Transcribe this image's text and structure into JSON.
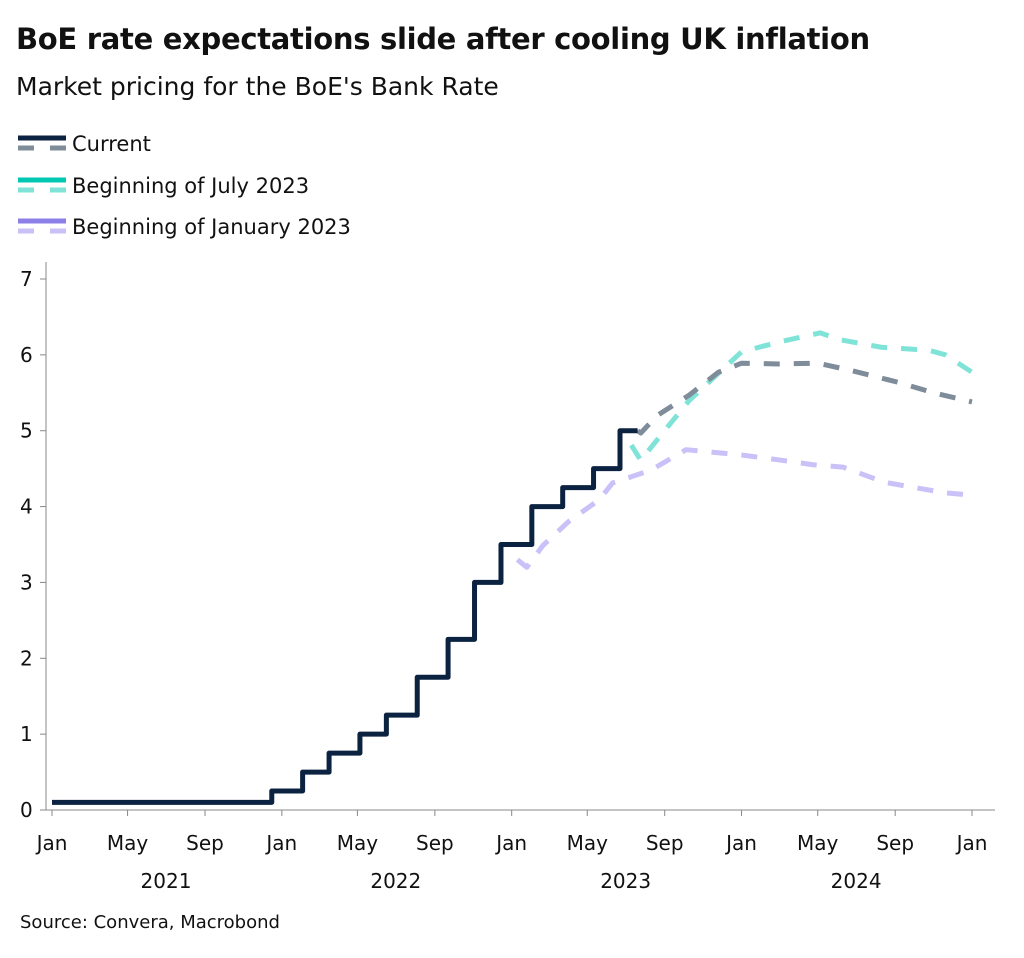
{
  "chart_data": {
    "type": "line",
    "title": "BoE rate expectations slide after cooling UK inflation",
    "subtitle": "Market pricing for the BoE's Bank Rate",
    "source": "Source: Convera, Macrobond",
    "ylim": [
      0,
      7
    ],
    "yticks": [
      "0",
      "1",
      "2",
      "3",
      "4",
      "5",
      "6",
      "7"
    ],
    "xlim": [
      "2021-01-01",
      "2025-01-01"
    ],
    "xticks": [
      {
        "date": "2021-01-01",
        "label": "Jan"
      },
      {
        "date": "2021-05-01",
        "label": "May"
      },
      {
        "date": "2021-09-01",
        "label": "Sep"
      },
      {
        "date": "2022-01-01",
        "label": "Jan"
      },
      {
        "date": "2022-05-01",
        "label": "May"
      },
      {
        "date": "2022-09-01",
        "label": "Sep"
      },
      {
        "date": "2023-01-01",
        "label": "Jan"
      },
      {
        "date": "2023-05-01",
        "label": "May"
      },
      {
        "date": "2023-09-01",
        "label": "Sep"
      },
      {
        "date": "2024-01-01",
        "label": "Jan"
      },
      {
        "date": "2024-05-01",
        "label": "May"
      },
      {
        "date": "2024-09-01",
        "label": "Sep"
      },
      {
        "date": "2025-01-01",
        "label": "Jan"
      }
    ],
    "year_labels": [
      {
        "date": "2021-07-01",
        "label": "2021"
      },
      {
        "date": "2022-07-01",
        "label": "2022"
      },
      {
        "date": "2023-07-01",
        "label": "2023"
      },
      {
        "date": "2024-07-01",
        "label": "2024"
      }
    ],
    "grid": false,
    "legend_position": "top-left",
    "series": [
      {
        "name": "Current",
        "color": "#0b2340",
        "dash_color": "#7f8c99",
        "style": "step",
        "points": [
          [
            "2021-01-01",
            0.1
          ],
          [
            "2021-12-16",
            0.25
          ],
          [
            "2022-02-03",
            0.5
          ],
          [
            "2022-03-17",
            0.75
          ],
          [
            "2022-05-05",
            1.0
          ],
          [
            "2022-06-16",
            1.25
          ],
          [
            "2022-08-04",
            1.75
          ],
          [
            "2022-09-22",
            2.25
          ],
          [
            "2022-11-03",
            3.0
          ],
          [
            "2022-12-15",
            3.5
          ],
          [
            "2023-02-02",
            4.0
          ],
          [
            "2023-03-23",
            4.25
          ],
          [
            "2023-05-11",
            4.5
          ],
          [
            "2023-06-22",
            5.0
          ],
          [
            "2023-07-20",
            5.0
          ]
        ]
      },
      {
        "name": "Current",
        "color": "#7f8c99",
        "style": "dashed",
        "legend": false,
        "points": [
          [
            "2023-07-20",
            5.0
          ],
          [
            "2023-07-25",
            4.97
          ],
          [
            "2023-08-20",
            5.2
          ],
          [
            "2023-10-10",
            5.47
          ],
          [
            "2023-11-25",
            5.77
          ],
          [
            "2024-01-01",
            5.89
          ],
          [
            "2024-03-01",
            5.88
          ],
          [
            "2024-05-01",
            5.89
          ],
          [
            "2024-06-20",
            5.8
          ],
          [
            "2024-09-05",
            5.64
          ],
          [
            "2024-11-01",
            5.5
          ],
          [
            "2025-01-01",
            5.38
          ]
        ]
      },
      {
        "name": "Beginning of July 2023",
        "color": "#00c7b1",
        "dash_color": "#7fe3d8",
        "style": "dashed",
        "points": [
          [
            "2023-07-10",
            4.81
          ],
          [
            "2023-07-25",
            4.61
          ],
          [
            "2023-08-20",
            4.88
          ],
          [
            "2023-10-10",
            5.4
          ],
          [
            "2024-01-01",
            6.04
          ],
          [
            "2024-03-01",
            6.17
          ],
          [
            "2024-05-05",
            6.29
          ],
          [
            "2024-06-05",
            6.2
          ],
          [
            "2024-08-10",
            6.1
          ],
          [
            "2024-10-25",
            6.06
          ],
          [
            "2024-11-20",
            6.0
          ],
          [
            "2025-01-01",
            5.77
          ]
        ]
      },
      {
        "name": "Beginning of January 2023",
        "color": "#8c7fe8",
        "dash_color": "#c9c1f7",
        "style": "dashed",
        "points": [
          [
            "2023-01-10",
            3.3
          ],
          [
            "2023-01-25",
            3.2
          ],
          [
            "2023-02-20",
            3.49
          ],
          [
            "2023-04-01",
            3.8
          ],
          [
            "2023-05-20",
            4.09
          ],
          [
            "2023-06-10",
            4.31
          ],
          [
            "2023-08-10",
            4.48
          ],
          [
            "2023-10-05",
            4.75
          ],
          [
            "2024-01-01",
            4.68
          ],
          [
            "2024-03-05",
            4.61
          ],
          [
            "2024-04-25",
            4.55
          ],
          [
            "2024-06-10",
            4.52
          ],
          [
            "2024-08-15",
            4.32
          ],
          [
            "2024-11-20",
            4.18
          ],
          [
            "2025-01-01",
            4.15
          ]
        ]
      }
    ]
  }
}
